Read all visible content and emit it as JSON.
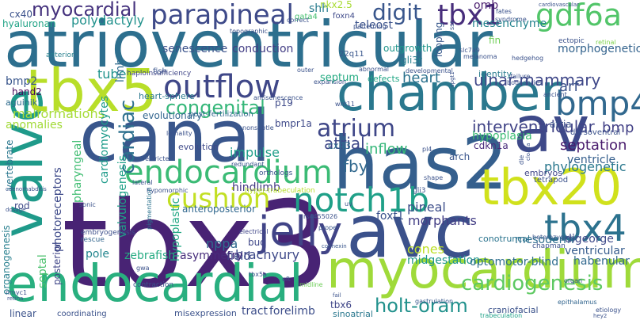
{
  "words": [
    {
      "text": "tbx3",
      "color": "#482374"
    },
    {
      "text": "atrioventricular",
      "color": "#2d6f8e"
    },
    {
      "text": "avc",
      "color": "#3b518b"
    },
    {
      "text": "canal",
      "color": "#39568c"
    },
    {
      "text": "chamber",
      "color": "#2a788e"
    },
    {
      "text": "has2",
      "color": "#355f8d"
    },
    {
      "text": "myocardium",
      "color": "#9fda3a"
    },
    {
      "text": "endocardial",
      "color": "#29af7f"
    },
    {
      "text": "valve",
      "color": "#1f9a8a"
    },
    {
      "text": "tbx5",
      "color": "#b8de29"
    },
    {
      "text": "av",
      "color": "#3e4989"
    },
    {
      "text": "tbx20",
      "color": "#d0e11c"
    },
    {
      "text": "endocardium",
      "color": "#3bbb75"
    },
    {
      "text": "outflow",
      "color": "#3f4788"
    },
    {
      "text": "notch1b",
      "color": "#1fa088"
    },
    {
      "text": "jelly",
      "color": "#414487"
    },
    {
      "text": "tbx4",
      "color": "#2c728e"
    },
    {
      "text": "bmp4",
      "color": "#31688e"
    },
    {
      "text": "parapineal",
      "color": "#3e4a89"
    },
    {
      "text": "gdf6a",
      "color": "#52c569"
    },
    {
      "text": "tbx1",
      "color": "#472d7b"
    },
    {
      "text": "cushion",
      "color": "#c2df23"
    },
    {
      "text": "atrium",
      "color": "#3f4788"
    },
    {
      "text": "myocardial",
      "color": "#46337e"
    },
    {
      "text": "digit",
      "color": "#39568c"
    },
    {
      "text": "congenital",
      "color": "#35b779"
    },
    {
      "text": "cardiogenesis",
      "color": "#5ec962"
    },
    {
      "text": "holt-oram",
      "color": "#21918c"
    },
    {
      "text": "cardiac",
      "color": "#2d708e"
    },
    {
      "text": "ulnar-mammary",
      "color": "#3f4788"
    },
    {
      "text": "heart",
      "color": "#2c728e"
    },
    {
      "text": "atrial",
      "color": "#3f4889"
    },
    {
      "text": "interventricular",
      "color": "#414487"
    },
    {
      "text": "septation",
      "color": "#481a6c"
    },
    {
      "text": "malformations",
      "color": "#a5db36"
    },
    {
      "text": "polydactyly",
      "color": "#21918c"
    },
    {
      "text": "arf",
      "color": "#3b528b"
    },
    {
      "text": "bmp",
      "color": "#424086"
    },
    {
      "text": "ventricle",
      "color": "#355f8d"
    },
    {
      "text": "phylogenetic",
      "color": "#2a788e"
    },
    {
      "text": "pineal",
      "color": "#3d4e8a"
    },
    {
      "text": "fby",
      "color": "#31688e"
    },
    {
      "text": "inflow",
      "color": "#35b779"
    },
    {
      "text": "hindlimb",
      "color": "#443983"
    },
    {
      "text": "impulse",
      "color": "#1f9e89"
    },
    {
      "text": "morphants",
      "color": "#433e85"
    },
    {
      "text": "brachyury",
      "color": "#3e4989"
    },
    {
      "text": "nppa",
      "color": "#306a8e"
    },
    {
      "text": "field",
      "color": "#3e4989"
    },
    {
      "text": "zebrafish",
      "color": "#25ab82"
    },
    {
      "text": "asymmetry",
      "color": "#472d7b"
    },
    {
      "text": "pole",
      "color": "#24868e"
    },
    {
      "text": "midgestation",
      "color": "#1f968b"
    },
    {
      "text": "optomotor-blind",
      "color": "#2e6e8e"
    },
    {
      "text": "cones",
      "color": "#bddf26"
    },
    {
      "text": "ventricular",
      "color": "#365c8d"
    },
    {
      "text": "habenular",
      "color": "#31688e"
    },
    {
      "text": "mesoderm",
      "color": "#2e6e8e"
    },
    {
      "text": "digeorge",
      "color": "#3e4989"
    },
    {
      "text": "conduction",
      "color": "#433e85"
    },
    {
      "text": "senescence",
      "color": "#3b528b"
    },
    {
      "text": "shh",
      "color": "#287c8e"
    },
    {
      "text": "omb",
      "color": "#481b6d"
    },
    {
      "text": "morphogenetic",
      "color": "#33638d"
    },
    {
      "text": "mesenchyme",
      "color": "#25848e"
    },
    {
      "text": "teleost",
      "color": "#3b528b"
    },
    {
      "text": "outgrowth",
      "color": "#1f958b"
    },
    {
      "text": "gli3r",
      "color": "#27808e"
    },
    {
      "text": "looping",
      "color": "#38588c"
    },
    {
      "text": "bmp2",
      "color": "#39568c"
    },
    {
      "text": "hand2",
      "color": "#450457"
    },
    {
      "text": "aguinik",
      "color": "#2f6c8e"
    },
    {
      "text": "cx40",
      "color": "#3b528b"
    },
    {
      "text": "hyaluronan",
      "color": "#20a386"
    },
    {
      "text": "tube",
      "color": "#20938c"
    },
    {
      "text": "limb",
      "color": "#2f6b8e"
    },
    {
      "text": "anomalies",
      "color": "#a2da37"
    },
    {
      "text": "cardiomyocytes",
      "color": "#1e9b8a"
    },
    {
      "text": "pharyngeal",
      "color": "#40bd72"
    },
    {
      "text": "evolutionary",
      "color": "#32658e"
    },
    {
      "text": "septum",
      "color": "#25ab82"
    },
    {
      "text": "defects",
      "color": "#22a785"
    },
    {
      "text": "identity",
      "color": "#287c8e"
    },
    {
      "text": "atria",
      "color": "#3b528b"
    },
    {
      "text": "hypoplasia",
      "color": "#3dbc74"
    },
    {
      "text": "cx43",
      "color": "#2f6c8e"
    },
    {
      "text": "arch",
      "color": "#39558c"
    },
    {
      "text": "cdkn1a",
      "color": "#472a7a"
    },
    {
      "text": "photoreceptors",
      "color": "#3e4a89"
    },
    {
      "text": "septal",
      "color": "#4ac16d"
    },
    {
      "text": "rod",
      "color": "#3e4a89"
    },
    {
      "text": "vertebrate",
      "color": "#2a778e"
    },
    {
      "text": "organogenesis",
      "color": "#277f8e"
    },
    {
      "text": "posterior",
      "color": "#404688"
    },
    {
      "text": "valvulogenesis",
      "color": "#1fa187"
    },
    {
      "text": "hypoplastic",
      "color": "#22a884"
    },
    {
      "text": "anteroposterior",
      "color": "#31688e"
    },
    {
      "text": "bud",
      "color": "#3f4788"
    },
    {
      "text": "pigmentation",
      "color": "#2c738e"
    },
    {
      "text": "foxf1",
      "color": "#3b528b"
    },
    {
      "text": "conotruncal",
      "color": "#2b748e"
    },
    {
      "text": "tract",
      "color": "#3d4e8a"
    },
    {
      "text": "forelimb",
      "color": "#3d4e8a"
    },
    {
      "text": "tbx6",
      "color": "#404688"
    },
    {
      "text": "linear",
      "color": "#3b528b"
    },
    {
      "text": "misexpression",
      "color": "#3b528b"
    },
    {
      "text": "sinoatrial",
      "color": "#2a788e"
    },
    {
      "text": "craniofacial",
      "color": "#3b528b"
    },
    {
      "text": "evolution",
      "color": "#3e4989"
    },
    {
      "text": "embryos",
      "color": "#404688"
    },
    {
      "text": "tetrapod",
      "color": "#3b528b"
    },
    {
      "text": "p19",
      "color": "#3e4a89"
    },
    {
      "text": "bmpr1a",
      "color": "#3e4989"
    },
    {
      "text": "post-fertilization",
      "color": "#31688e"
    },
    {
      "text": "nkx2.5",
      "color": "#a8db34"
    },
    {
      "text": "foxn4",
      "color": "#3e4989"
    },
    {
      "text": "gata4",
      "color": "#46c06f"
    },
    {
      "text": "22q11",
      "color": "#39568c"
    },
    {
      "text": "fin",
      "color": "#70cf57"
    },
    {
      "text": "heart-sphere",
      "color": "#2a788e"
    },
    {
      "text": "haploinsufficiency",
      "color": "#404688"
    },
    {
      "text": "anterior",
      "color": "#27808e"
    },
    {
      "text": "fish",
      "color": "#3a548c"
    },
    {
      "text": "rs4455026",
      "color": "#3b528b"
    },
    {
      "text": "embryogenesis",
      "color": "#3d4e8a"
    },
    {
      "text": "rescue",
      "color": "#32658e"
    },
    {
      "text": "sonic",
      "color": "#3b528b"
    },
    {
      "text": "chapman",
      "color": "#3b528b"
    },
    {
      "text": "gli3",
      "color": "#3b528b"
    },
    {
      "text": "electrical",
      "color": "#404688"
    },
    {
      "text": "tbx5a",
      "color": "#3b528b"
    },
    {
      "text": "gastrulation",
      "color": "#38588c"
    },
    {
      "text": "contraction",
      "color": "#3b528b"
    },
    {
      "text": "trabeculation",
      "color": "#1fa188"
    },
    {
      "text": "epithalamus",
      "color": "#32658e"
    },
    {
      "text": "etiology",
      "color": "#3b528b"
    },
    {
      "text": "coordinating",
      "color": "#3b528b"
    },
    {
      "text": "hyper-trabeculation",
      "color": "#b5de2b"
    },
    {
      "text": "proper",
      "color": "#39568c"
    },
    {
      "text": "connexin",
      "color": "#39568c"
    },
    {
      "text": "heterozygous",
      "color": "#39568c"
    },
    {
      "text": "midline",
      "color": "#6ece58"
    },
    {
      "text": "orthologs",
      "color": "#3b528b"
    },
    {
      "text": "dorsoventral",
      "color": "#3b528b"
    },
    {
      "text": "ancient",
      "color": "#3b528b"
    },
    {
      "text": "hedgehog",
      "color": "#3b528b"
    },
    {
      "text": "ectopic",
      "color": "#3b528b"
    },
    {
      "text": "retinal",
      "color": "#7fd34e"
    },
    {
      "text": "lethality",
      "color": "#3b528b"
    },
    {
      "text": "syndrome",
      "color": "#3b528b"
    },
    {
      "text": "slc7a9",
      "color": "#3b528b"
    },
    {
      "text": "melanoma",
      "color": "#3b528b"
    },
    {
      "text": "failure",
      "color": "#3b528b"
    },
    {
      "text": "boundaries",
      "color": "#3b528b"
    },
    {
      "text": "developmental",
      "color": "#3b528b"
    },
    {
      "text": "wnt11",
      "color": "#3b528b"
    },
    {
      "text": "correct",
      "color": "#3b528b"
    },
    {
      "text": "patterning",
      "color": "#3b528b"
    },
    {
      "text": "antisenescence",
      "color": "#3b528b"
    },
    {
      "text": "fates",
      "color": "#3b528b"
    },
    {
      "text": "cardiovascular",
      "color": "#3b528b"
    },
    {
      "text": "expansion",
      "color": "#3b528b"
    },
    {
      "text": "dosage",
      "color": "#3b528b"
    },
    {
      "text": "hypomorphic",
      "color": "#3b528b"
    },
    {
      "text": "redundant",
      "color": "#3b528b"
    },
    {
      "text": "restricted",
      "color": "#3b528b"
    },
    {
      "text": "lateral",
      "color": "#3b528b"
    },
    {
      "text": "caenorhabditis",
      "color": "#3b528b"
    },
    {
      "text": "nmyc1",
      "color": "#3b528b"
    },
    {
      "text": "abnormal",
      "color": "#3b528b"
    },
    {
      "text": "retina",
      "color": "#3b528b"
    },
    {
      "text": "topographic",
      "color": "#3b528b"
    },
    {
      "text": "outer",
      "color": "#3b528b"
    },
    {
      "text": "pl4",
      "color": "#3b528b"
    },
    {
      "text": "shape",
      "color": "#3b528b"
    },
    {
      "text": "uv",
      "color": "#3b528b"
    },
    {
      "text": "die",
      "color": "#3b528b"
    },
    {
      "text": "cloaca",
      "color": "#3b528b"
    },
    {
      "text": "spgt1",
      "color": "#3b528b"
    },
    {
      "text": "ssr",
      "color": "#3b528b"
    },
    {
      "text": "gwa",
      "color": "#3b528b"
    },
    {
      "text": "organ",
      "color": "#3b528b"
    },
    {
      "text": "oft",
      "color": "#3b528b"
    },
    {
      "text": "fail",
      "color": "#3b528b"
    },
    {
      "text": "nonsubtle",
      "color": "#3b528b"
    },
    {
      "text": "hey2",
      "color": "#3b528b"
    },
    {
      "text": "coordinated",
      "color": "#3b528b"
    }
  ]
}
